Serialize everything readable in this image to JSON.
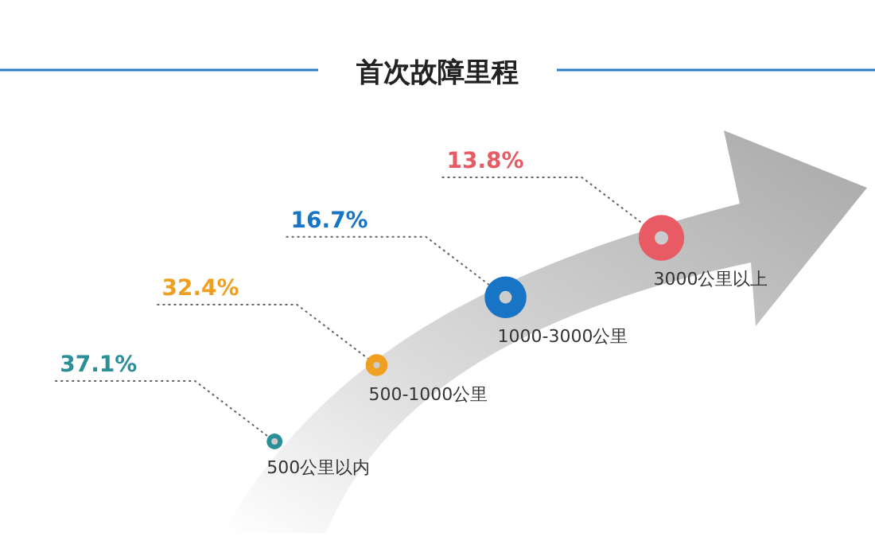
{
  "chart_data": {
    "type": "other",
    "title": "首次故障里程",
    "categories": [
      "500公里以内",
      "500-1000公里",
      "1000-3000公里",
      "3000公里以上"
    ],
    "values": [
      37.1,
      32.4,
      16.7,
      13.8
    ],
    "value_labels": [
      "37.1%",
      "32.4%",
      "16.7%",
      "13.8%"
    ],
    "colors": [
      "#2a8f96",
      "#f0a020",
      "#1874c4",
      "#e85a64"
    ]
  }
}
